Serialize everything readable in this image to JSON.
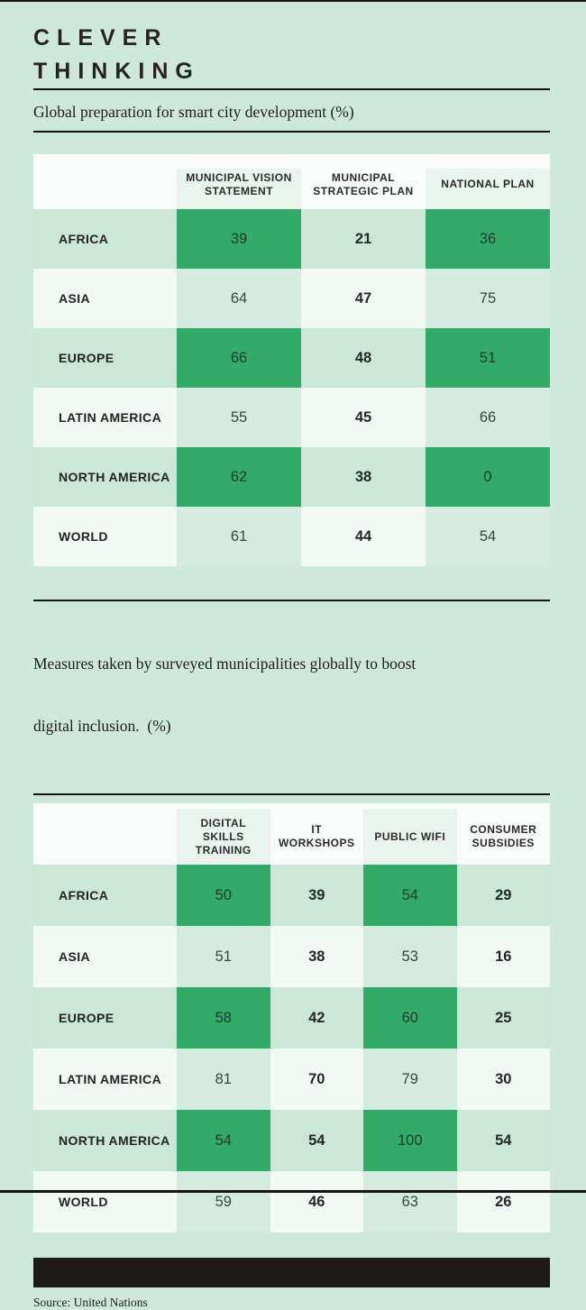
{
  "ui": {
    "title_line1": "CLEVER",
    "title_line2": "THINKING",
    "section1_subtitle": "Global preparation for smart city development (%)",
    "section2_subtitle_line1": "Measures taken by surveyed municipalities globally to boost",
    "section2_subtitle_line2": "digital inclusion.  (%)",
    "source": "Source: United Nations"
  },
  "colors": {
    "page_background": "#cee9db",
    "accent_green": "#32aa68",
    "mint_cell": "#cbe7d8",
    "pale_cell": "#f2f9f4",
    "pale_green_cell": "#d3ecdf",
    "header_white": "#f9fcfa",
    "header_tint": "#eaf4ee",
    "footer_bar_black": "#1e1c1a",
    "rule_black": "#131313"
  },
  "chart_data": [
    {
      "type": "table",
      "title": "Global preparation for smart city development (%)",
      "columns": [
        "Municipal Vision Statement",
        "Municipal Strategic Plan",
        "National Plan"
      ],
      "rows": [
        "Africa",
        "Asia",
        "Europe",
        "Latin America",
        "North America",
        "World"
      ],
      "values": [
        [
          39,
          21,
          36
        ],
        [
          64,
          47,
          75
        ],
        [
          66,
          48,
          51
        ],
        [
          55,
          45,
          66
        ],
        [
          62,
          38,
          0
        ],
        [
          61,
          44,
          54
        ]
      ]
    },
    {
      "type": "table",
      "title": "Measures taken by surveyed municipalities globally to boost digital inclusion. (%)",
      "columns": [
        "Digital Skills Training",
        "IT Workshops",
        "Public WiFi",
        "Consumer Subsidies"
      ],
      "rows": [
        "Africa",
        "Asia",
        "Europe",
        "Latin America",
        "North America",
        "World"
      ],
      "values": [
        [
          50,
          39,
          54,
          29
        ],
        [
          51,
          38,
          53,
          16
        ],
        [
          58,
          42,
          60,
          25
        ],
        [
          81,
          70,
          79,
          30
        ],
        [
          54,
          54,
          100,
          54
        ],
        [
          59,
          46,
          63,
          26
        ]
      ]
    }
  ]
}
